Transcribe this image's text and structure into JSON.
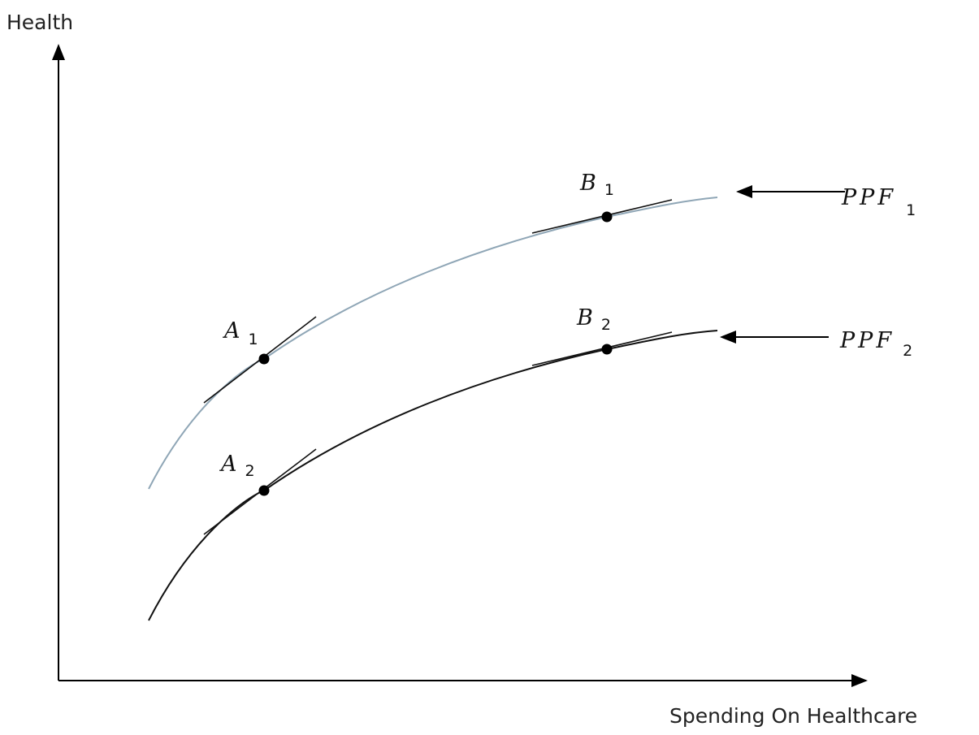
{
  "axes": {
    "y_label": "Health",
    "x_label": "Spending On Healthcare"
  },
  "curves": [
    {
      "label": "PPF",
      "subscript": "1"
    },
    {
      "label": "PPF",
      "subscript": "2"
    }
  ],
  "points": [
    {
      "label": "A",
      "subscript": "1"
    },
    {
      "label": "B",
      "subscript": "1"
    },
    {
      "label": "A",
      "subscript": "2"
    },
    {
      "label": "B",
      "subscript": "2"
    }
  ]
}
